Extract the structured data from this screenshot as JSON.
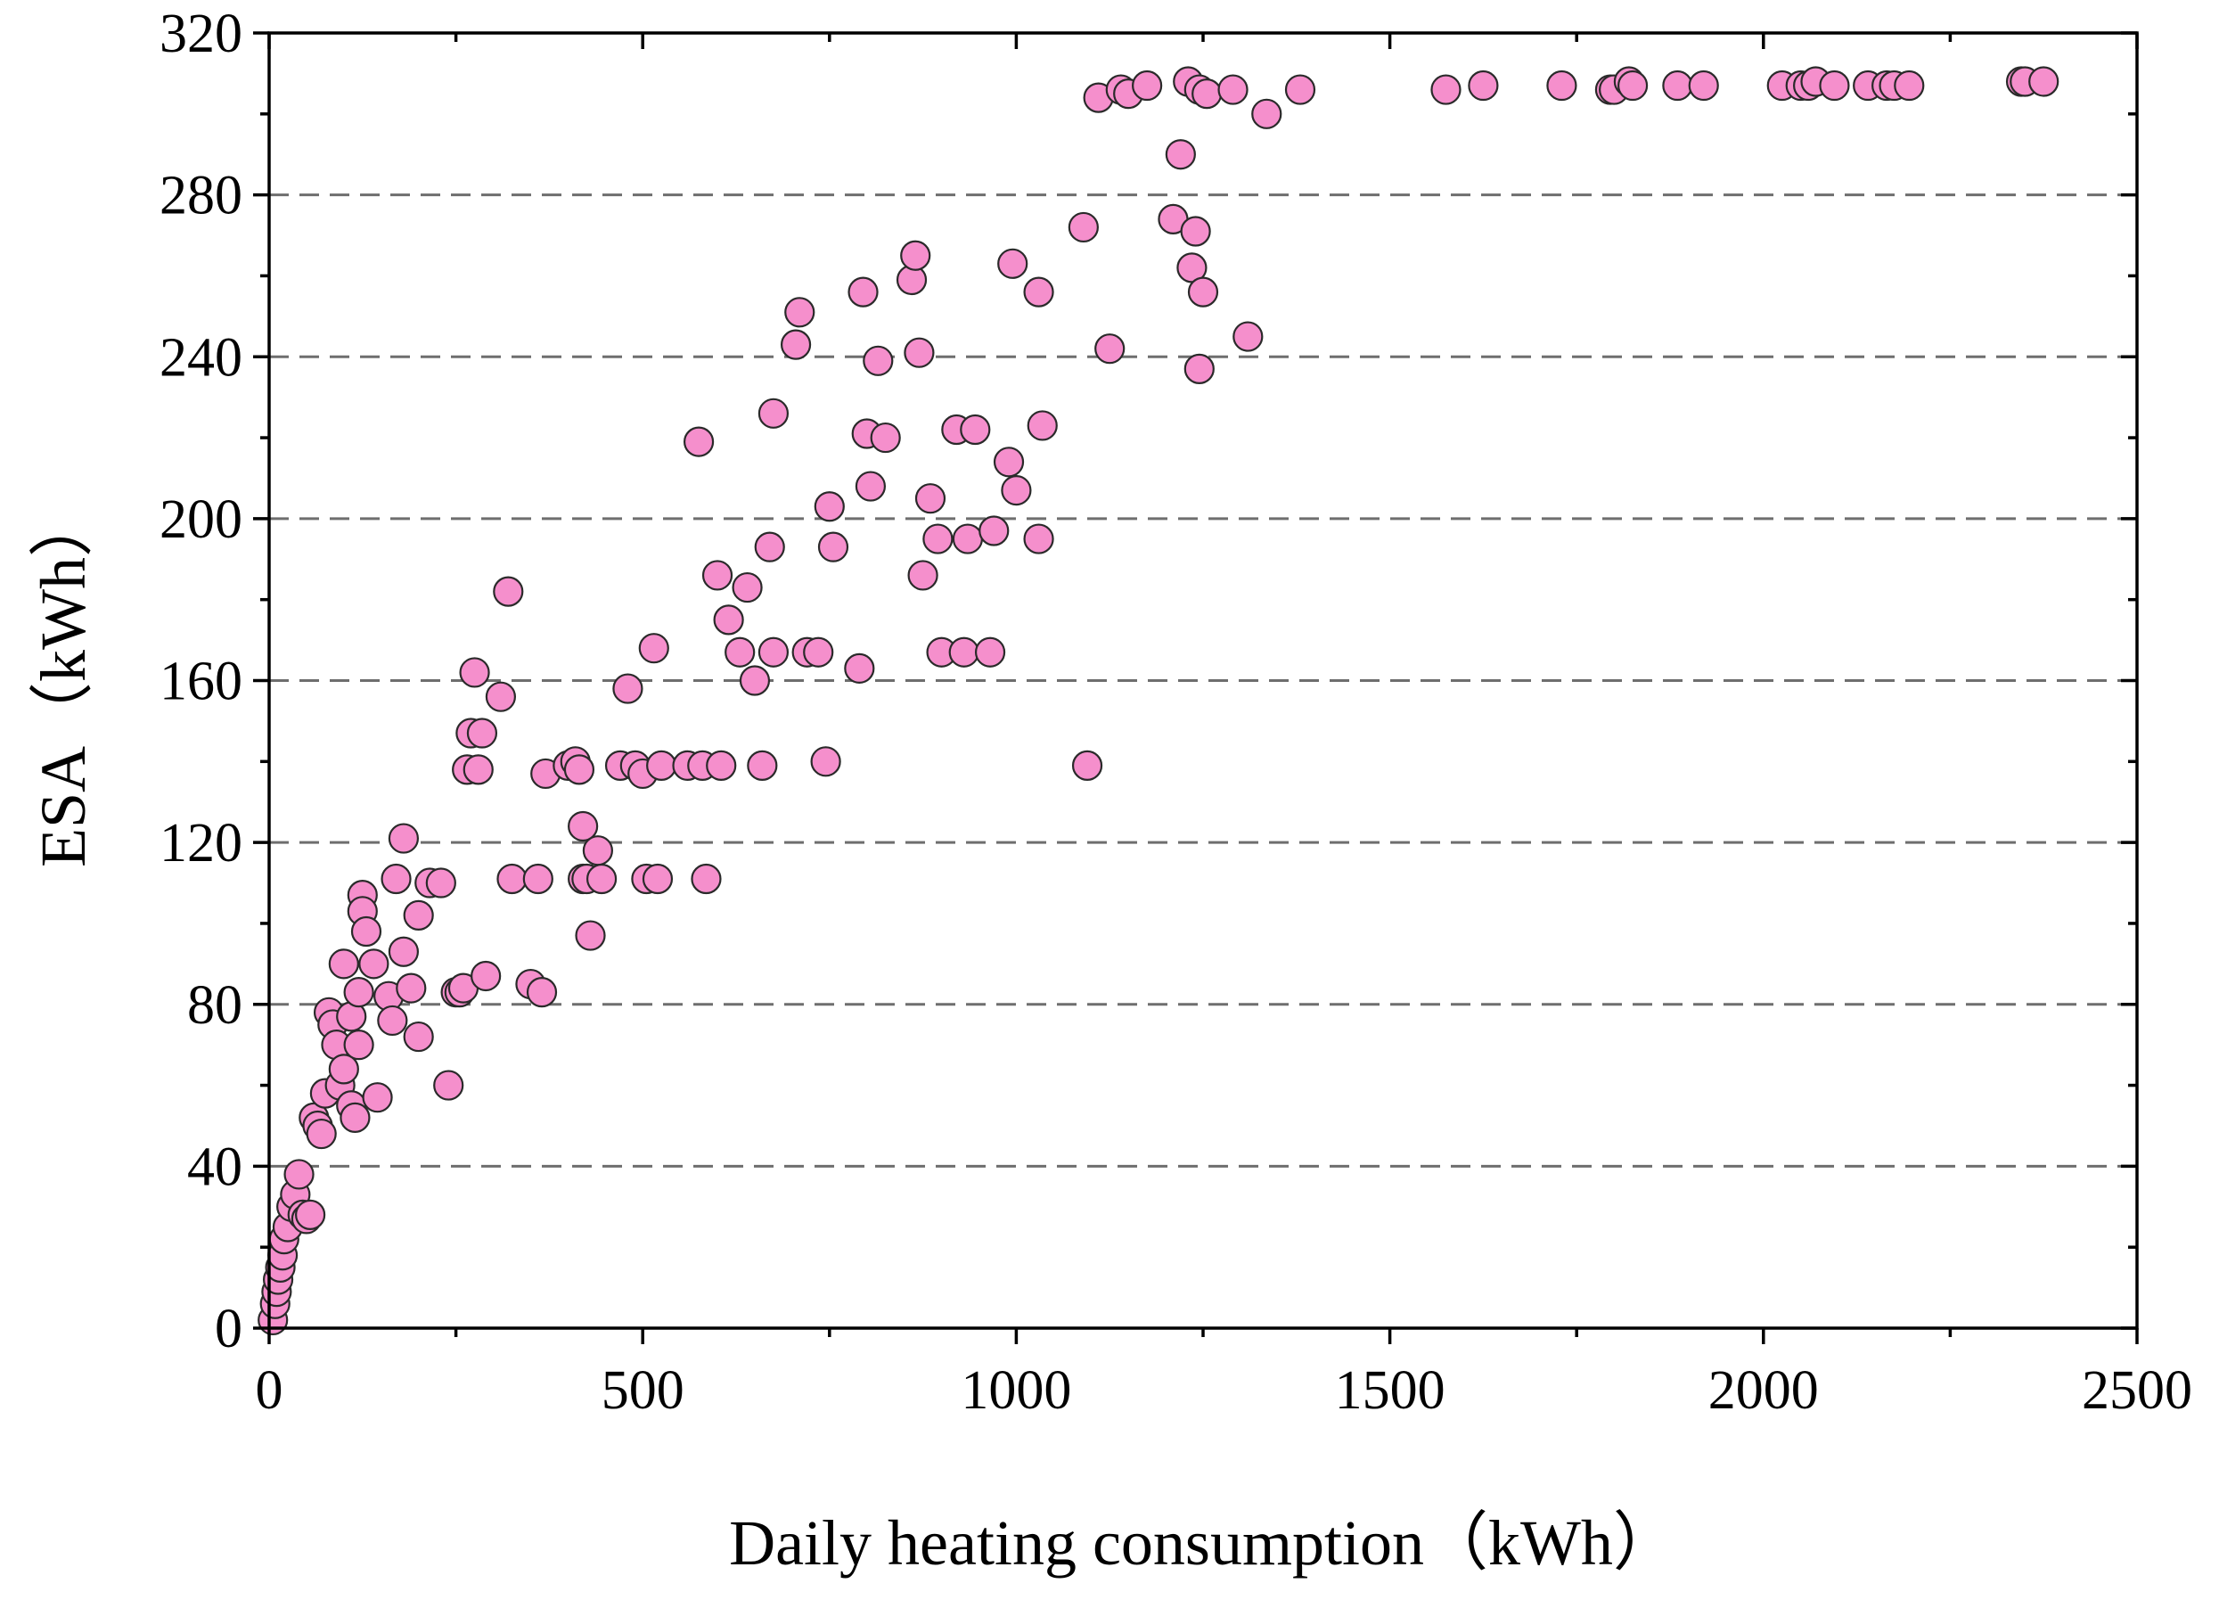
{
  "chart_data": {
    "type": "scatter",
    "xlabel": "Daily heating consumption（kWh）",
    "ylabel": "ESA（kWh）",
    "xlim": [
      0,
      2500
    ],
    "ylim": [
      0,
      320
    ],
    "x_ticks": [
      0,
      500,
      1000,
      1500,
      2000,
      2500
    ],
    "x_tick_labels": [
      "0",
      "500",
      "1000",
      "1500",
      "2000",
      "2500"
    ],
    "y_ticks": [
      0,
      40,
      80,
      120,
      160,
      200,
      240,
      280,
      320
    ],
    "y_tick_labels": [
      "0",
      "40",
      "80",
      "120",
      "160",
      "200",
      "240",
      "280",
      "320"
    ],
    "grid": "horizontal dashed",
    "point_color": "#f58fcc",
    "point_edge_color": "#2a2a2a",
    "grid_color": "#6e6e6e",
    "series": [
      {
        "points": [
          [
            5,
            2
          ],
          [
            8,
            6
          ],
          [
            10,
            9
          ],
          [
            12,
            12
          ],
          [
            15,
            15
          ],
          [
            18,
            18
          ],
          [
            20,
            22
          ],
          [
            25,
            25
          ],
          [
            30,
            30
          ],
          [
            35,
            33
          ],
          [
            40,
            38
          ],
          [
            45,
            28
          ],
          [
            50,
            27
          ],
          [
            55,
            28
          ],
          [
            60,
            52
          ],
          [
            65,
            50
          ],
          [
            70,
            48
          ],
          [
            75,
            58
          ],
          [
            80,
            78
          ],
          [
            85,
            75
          ],
          [
            90,
            70
          ],
          [
            95,
            60
          ],
          [
            100,
            64
          ],
          [
            100,
            90
          ],
          [
            110,
            77
          ],
          [
            110,
            55
          ],
          [
            115,
            52
          ],
          [
            120,
            70
          ],
          [
            120,
            83
          ],
          [
            125,
            107
          ],
          [
            125,
            103
          ],
          [
            130,
            98
          ],
          [
            140,
            90
          ],
          [
            145,
            57
          ],
          [
            160,
            82
          ],
          [
            165,
            76
          ],
          [
            170,
            111
          ],
          [
            180,
            121
          ],
          [
            180,
            93
          ],
          [
            190,
            84
          ],
          [
            200,
            102
          ],
          [
            200,
            72
          ],
          [
            215,
            110
          ],
          [
            230,
            110
          ],
          [
            240,
            60
          ],
          [
            250,
            83
          ],
          [
            255,
            83
          ],
          [
            260,
            84
          ],
          [
            265,
            138
          ],
          [
            270,
            147
          ],
          [
            275,
            162
          ],
          [
            280,
            138
          ],
          [
            285,
            147
          ],
          [
            290,
            87
          ],
          [
            310,
            156
          ],
          [
            320,
            182
          ],
          [
            325,
            111
          ],
          [
            350,
            85
          ],
          [
            360,
            111
          ],
          [
            365,
            83
          ],
          [
            370,
            137
          ],
          [
            400,
            139
          ],
          [
            410,
            140
          ],
          [
            415,
            138
          ],
          [
            420,
            124
          ],
          [
            420,
            111
          ],
          [
            425,
            111
          ],
          [
            430,
            97
          ],
          [
            440,
            118
          ],
          [
            445,
            111
          ],
          [
            470,
            139
          ],
          [
            480,
            158
          ],
          [
            490,
            139
          ],
          [
            500,
            137
          ],
          [
            505,
            111
          ],
          [
            515,
            168
          ],
          [
            525,
            139
          ],
          [
            520,
            111
          ],
          [
            560,
            139
          ],
          [
            575,
            219
          ],
          [
            580,
            139
          ],
          [
            585,
            111
          ],
          [
            600,
            186
          ],
          [
            605,
            139
          ],
          [
            615,
            175
          ],
          [
            630,
            167
          ],
          [
            640,
            183
          ],
          [
            650,
            160
          ],
          [
            660,
            139
          ],
          [
            670,
            193
          ],
          [
            675,
            226
          ],
          [
            675,
            167
          ],
          [
            705,
            243
          ],
          [
            710,
            251
          ],
          [
            720,
            167
          ],
          [
            735,
            167
          ],
          [
            745,
            140
          ],
          [
            750,
            203
          ],
          [
            755,
            193
          ],
          [
            790,
            163
          ],
          [
            795,
            256
          ],
          [
            800,
            221
          ],
          [
            805,
            208
          ],
          [
            815,
            239
          ],
          [
            825,
            220
          ],
          [
            860,
            259
          ],
          [
            865,
            265
          ],
          [
            870,
            241
          ],
          [
            875,
            186
          ],
          [
            885,
            205
          ],
          [
            895,
            195
          ],
          [
            900,
            167
          ],
          [
            920,
            222
          ],
          [
            930,
            167
          ],
          [
            935,
            195
          ],
          [
            945,
            222
          ],
          [
            965,
            167
          ],
          [
            970,
            197
          ],
          [
            990,
            214
          ],
          [
            995,
            263
          ],
          [
            1000,
            207
          ],
          [
            1030,
            195
          ],
          [
            1030,
            256
          ],
          [
            1035,
            223
          ],
          [
            1090,
            272
          ],
          [
            1095,
            139
          ],
          [
            1110,
            304
          ],
          [
            1125,
            242
          ],
          [
            1140,
            306
          ],
          [
            1150,
            305
          ],
          [
            1175,
            307
          ],
          [
            1210,
            274
          ],
          [
            1220,
            290
          ],
          [
            1230,
            308
          ],
          [
            1235,
            262
          ],
          [
            1240,
            271
          ],
          [
            1245,
            306
          ],
          [
            1245,
            237
          ],
          [
            1250,
            256
          ],
          [
            1255,
            305
          ],
          [
            1290,
            306
          ],
          [
            1310,
            245
          ],
          [
            1335,
            300
          ],
          [
            1380,
            306
          ],
          [
            1575,
            306
          ],
          [
            1625,
            307
          ],
          [
            1730,
            307
          ],
          [
            1795,
            306
          ],
          [
            1800,
            306
          ],
          [
            1820,
            308
          ],
          [
            1825,
            307
          ],
          [
            1885,
            307
          ],
          [
            1920,
            307
          ],
          [
            2025,
            307
          ],
          [
            2050,
            307
          ],
          [
            2060,
            307
          ],
          [
            2070,
            308
          ],
          [
            2095,
            307
          ],
          [
            2140,
            307
          ],
          [
            2165,
            307
          ],
          [
            2175,
            307
          ],
          [
            2195,
            307
          ],
          [
            2345,
            308
          ],
          [
            2350,
            308
          ],
          [
            2375,
            308
          ]
        ]
      }
    ]
  }
}
